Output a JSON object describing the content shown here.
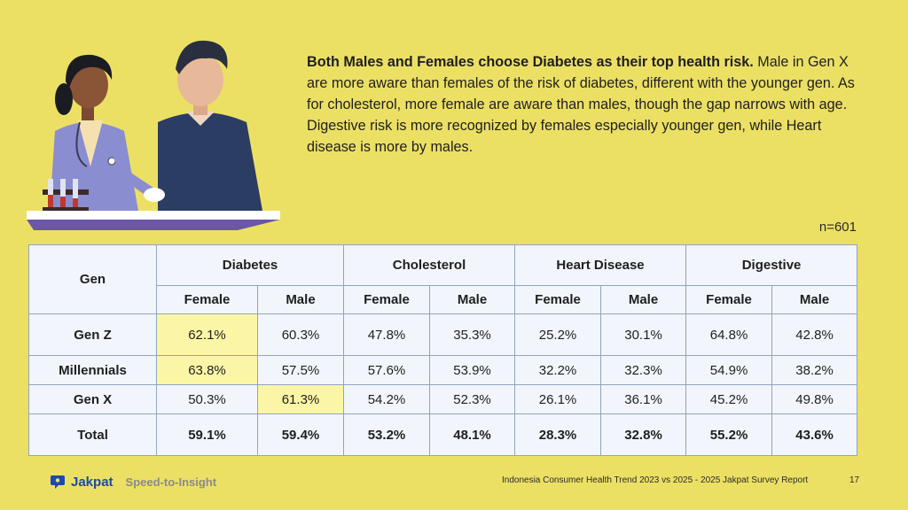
{
  "headline": {
    "bold": "Both Males and Females choose Diabetes as their top health risk.",
    "body": " Male in Gen X are more aware than females of the risk of diabetes, different with the younger gen. As for cholesterol, more female are aware than males, though the gap narrows with age. Digestive risk is more recognized by females especially younger gen, while Heart disease is more by males."
  },
  "sample_size": "n=601",
  "table": {
    "gen_header": "Gen",
    "groups": [
      "Diabetes",
      "Cholesterol",
      "Heart Disease",
      "Digestive"
    ],
    "subheaders": [
      "Female",
      "Male",
      "Female",
      "Male",
      "Female",
      "Male",
      "Female",
      "Male"
    ],
    "rows": [
      {
        "label": "Gen Z",
        "values": [
          "62.1%",
          "60.3%",
          "47.8%",
          "35.3%",
          "25.2%",
          "30.1%",
          "64.8%",
          "42.8%"
        ]
      },
      {
        "label": "Millennials",
        "values": [
          "63.8%",
          "57.5%",
          "57.6%",
          "53.9%",
          "32.2%",
          "32.3%",
          "54.9%",
          "38.2%"
        ]
      },
      {
        "label": "Gen X",
        "values": [
          "50.3%",
          "61.3%",
          "54.2%",
          "52.3%",
          "26.1%",
          "36.1%",
          "45.2%",
          "49.8%"
        ]
      },
      {
        "label": "Total",
        "values": [
          "59.1%",
          "59.4%",
          "53.2%",
          "48.1%",
          "28.3%",
          "32.8%",
          "55.2%",
          "43.6%"
        ]
      }
    ],
    "highlight_color": "#fbf5a6"
  },
  "footer": {
    "logo_text": "Jakpat",
    "tagline": "Speed-to-Insight",
    "report": "Indonesia Consumer Health Trend 2023 vs 2025 - 2025 Jakpat Survey Report",
    "page": "17"
  },
  "colors": {
    "background": "#ece064",
    "table_bg": "#f2f5fb",
    "table_border": "#8fa6be",
    "brand": "#1c4aa8"
  }
}
